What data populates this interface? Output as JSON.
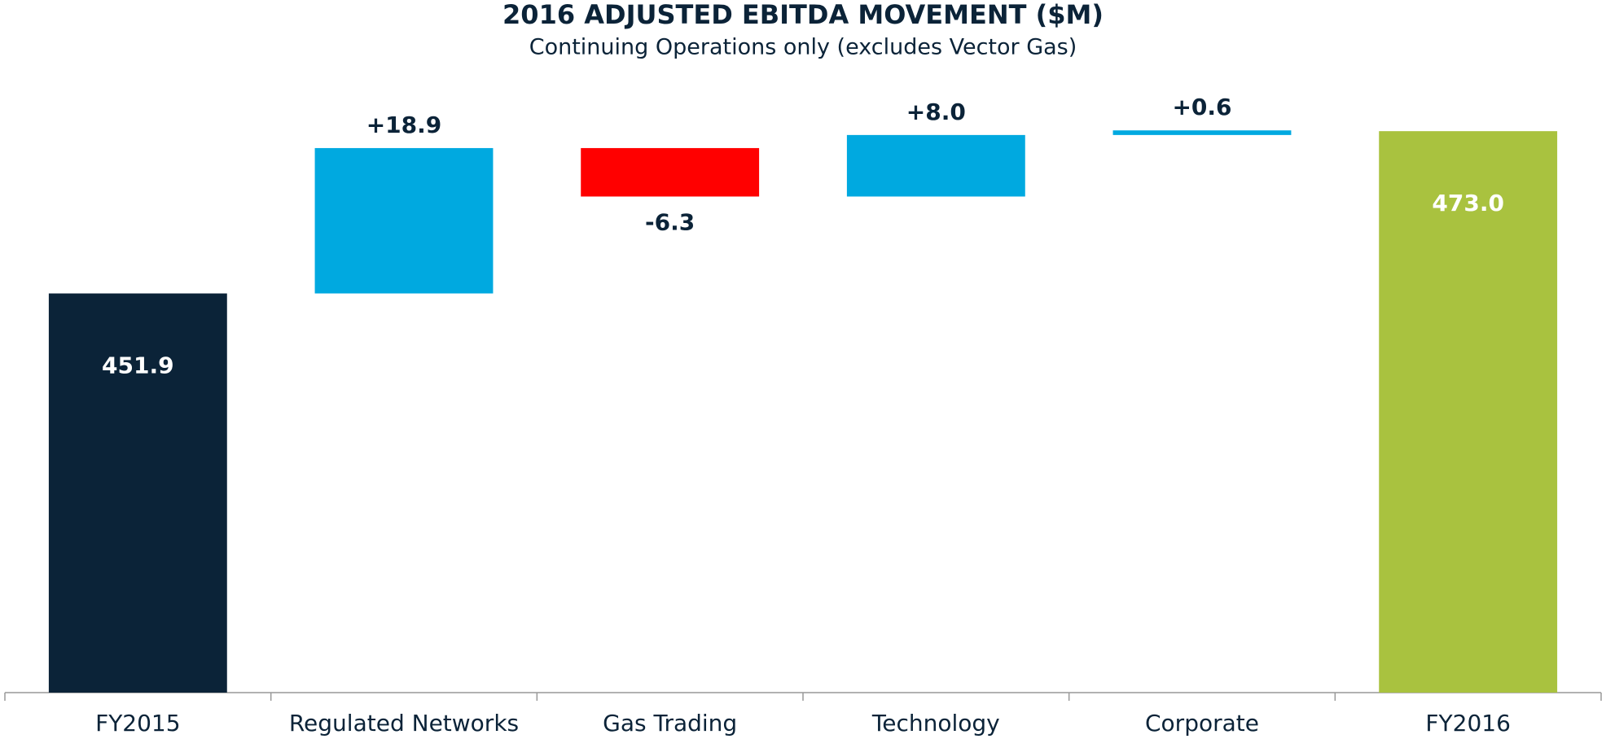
{
  "chart_data": {
    "type": "waterfall",
    "title": "2016 ADJUSTED EBITDA MOVEMENT ($M)",
    "subtitle": "Continuing Operations only (excludes Vector Gas)",
    "categories": [
      "FY2015",
      "Regulated Networks",
      "Gas Trading",
      "Technology",
      "Corporate",
      "FY2016"
    ],
    "values": [
      451.9,
      18.9,
      -6.3,
      8.0,
      0.6,
      473.0
    ],
    "value_labels": [
      "451.9",
      "+18.9",
      "-6.3",
      "+8.0",
      "+0.6",
      "473.0"
    ],
    "colors": [
      "#0b2338",
      "#00a9e0",
      "#ff0000",
      "#00a9e0",
      "#00a9e0",
      "#a9c23f"
    ],
    "ylim": [
      400,
      480
    ]
  }
}
